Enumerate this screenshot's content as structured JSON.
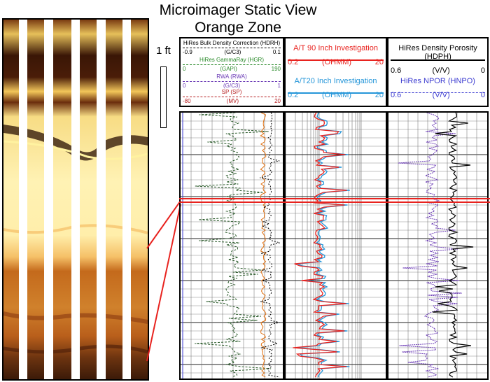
{
  "title": {
    "line1": "Microimager Static View",
    "line2": "Orange Zone"
  },
  "scale": {
    "label": "1 ft"
  },
  "colors": {
    "red": "#e8231f",
    "blue": "#2596d9",
    "green": "#2a8a2a",
    "purple": "#6a3ab5",
    "dark_red": "#b4191b"
  },
  "track1": {
    "curves": [
      {
        "name": "HiRes Bulk Density Correction (HDRH)",
        "min": "-0.9",
        "unit": "(G/C3)",
        "max": "0.1",
        "color": "#000000"
      },
      {
        "name": "HiRes GammaRay (HGR)",
        "min": "0",
        "unit": "(GAPI)",
        "max": "190",
        "color": "#2a8a2a"
      },
      {
        "name": "RWA (RWA)",
        "min": "0",
        "unit": "(G/C3)",
        "max": "1",
        "color": "#6a3ab5"
      },
      {
        "name": "SP (SP)",
        "min": "-80",
        "unit": "(MV)",
        "max": "20",
        "color": "#b4191b"
      }
    ]
  },
  "track2": {
    "curves": [
      {
        "name": "A/T 90 Inch Investigation",
        "min": "0.2",
        "unit": "(OHMM)",
        "max": "20",
        "color": "#e8231f"
      },
      {
        "name": "A/T20 Inch Investigation",
        "min": "0.2",
        "unit": "(OHMM)",
        "max": "20",
        "color": "#2596d9"
      }
    ]
  },
  "track3": {
    "curves": [
      {
        "name": "HiRes Density Porosity (HDPH)",
        "min": "0.6",
        "unit": "(V/V)",
        "max": "0",
        "color": "#000000"
      },
      {
        "name": "HiRes NPOR (HNPO)",
        "min": "0.6",
        "unit": "(V/V)",
        "max": "0",
        "color": "#3a3ad0"
      }
    ]
  }
}
